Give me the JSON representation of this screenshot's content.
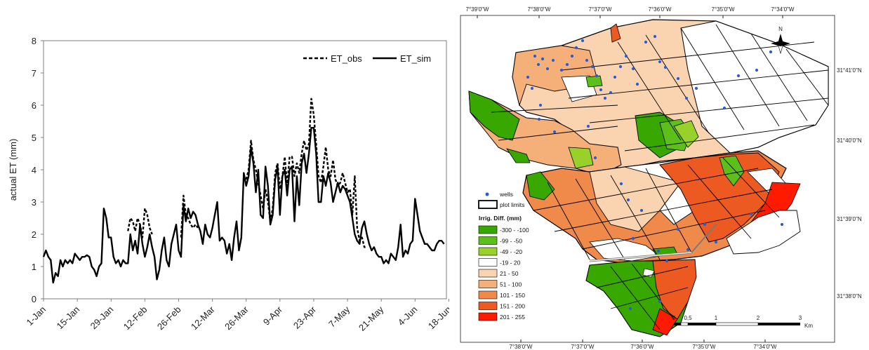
{
  "chart_data": {
    "type": "line",
    "ylabel": "actual ET (mm)",
    "ylim": [
      0,
      8
    ],
    "yticks": [
      "0",
      "1",
      "2",
      "3",
      "4",
      "5",
      "6",
      "7",
      "8"
    ],
    "xticks": [
      "1-Jan",
      "15-Jan",
      "29-Jan",
      "12-Feb",
      "26-Feb",
      "12-Mar",
      "26-Mar",
      "9-Apr",
      "23-Apr",
      "7-May",
      "21-May",
      "4-Jun",
      "18-Jun"
    ],
    "legend_position": "top-right",
    "series": [
      {
        "name": "ET_obs",
        "style": "dashed",
        "color": "#000000",
        "segments": [
          [
            [
              35,
              2.1
            ],
            [
              36,
              2.5
            ],
            [
              37,
              2.4
            ],
            [
              38,
              2.1
            ],
            [
              39,
              2.5
            ],
            [
              40,
              2.3
            ],
            [
              41,
              1.9
            ],
            [
              42,
              2.8
            ],
            [
              43,
              2.6
            ],
            [
              44,
              2.2
            ],
            [
              45,
              2.0
            ]
          ],
          [
            [
              57,
              1.9
            ],
            [
              58,
              3.2
            ],
            [
              59,
              2.6
            ],
            [
              60,
              2.5
            ],
            [
              61,
              2.3
            ],
            [
              62,
              2.2
            ],
            [
              63,
              2.3
            ],
            [
              64,
              2.2
            ]
          ],
          [
            [
              84,
              3.7
            ],
            [
              85,
              4.0
            ],
            [
              86,
              4.9
            ],
            [
              87,
              4.3
            ],
            [
              88,
              4.0
            ],
            [
              89,
              3.6
            ],
            [
              90,
              3.2
            ],
            [
              91,
              2.8
            ],
            [
              92,
              3.4
            ],
            [
              93,
              3.0
            ],
            [
              94,
              2.4
            ],
            [
              95,
              2.8
            ],
            [
              96,
              3.9
            ],
            [
              97,
              4.2
            ],
            [
              98,
              3.4
            ],
            [
              99,
              3.8
            ],
            [
              100,
              4.4
            ],
            [
              101,
              3.5
            ],
            [
              102,
              4.4
            ],
            [
              103,
              4.4
            ],
            [
              104,
              3.8
            ],
            [
              105,
              4.2
            ],
            [
              106,
              3.9
            ],
            [
              107,
              4.5
            ],
            [
              108,
              4.9
            ],
            [
              109,
              4.6
            ],
            [
              110,
              4.8
            ],
            [
              111,
              6.2
            ],
            [
              112,
              5.7
            ],
            [
              113,
              4.8
            ],
            [
              114,
              3.8
            ],
            [
              115,
              3.6
            ],
            [
              116,
              4.1
            ],
            [
              117,
              4.7
            ],
            [
              118,
              4.0
            ],
            [
              119,
              3.8
            ],
            [
              120,
              4.3
            ],
            [
              121,
              3.7
            ],
            [
              122,
              3.5
            ],
            [
              123,
              3.6
            ],
            [
              124,
              3.9
            ],
            [
              125,
              3.6
            ],
            [
              126,
              3.3
            ],
            [
              127,
              3.4
            ],
            [
              128,
              2.6
            ],
            [
              129,
              3.8
            ],
            [
              130,
              2.2
            ],
            [
              131,
              1.8
            ],
            [
              132,
              1.9
            ],
            [
              133,
              1.6
            ],
            [
              134,
              1.6
            ]
          ]
        ]
      },
      {
        "name": "ET_sim",
        "style": "solid",
        "color": "#000000",
        "segments": [
          [
            [
              0,
              1.3
            ],
            [
              1,
              1.5
            ],
            [
              2,
              1.3
            ],
            [
              3,
              1.2
            ],
            [
              4,
              0.5
            ],
            [
              5,
              0.8
            ],
            [
              6,
              0.7
            ],
            [
              7,
              1.2
            ],
            [
              8,
              1.0
            ],
            [
              9,
              1.2
            ],
            [
              10,
              1.1
            ],
            [
              11,
              1.2
            ],
            [
              12,
              1.1
            ],
            [
              13,
              1.4
            ],
            [
              14,
              1.3
            ],
            [
              15,
              1.2
            ],
            [
              16,
              1.3
            ],
            [
              17,
              1.3
            ],
            [
              18,
              1.35
            ],
            [
              19,
              1.3
            ],
            [
              20,
              1.0
            ],
            [
              21,
              0.9
            ],
            [
              22,
              0.7
            ],
            [
              23,
              1.0
            ],
            [
              24,
              1.1
            ],
            [
              25,
              2.8
            ],
            [
              26,
              2.5
            ],
            [
              27,
              1.9
            ],
            [
              28,
              1.9
            ],
            [
              29,
              1.3
            ],
            [
              30,
              1.1
            ],
            [
              31,
              1.2
            ],
            [
              32,
              1.0
            ],
            [
              33,
              1.2
            ],
            [
              34,
              1.1
            ],
            [
              35,
              1.1
            ],
            [
              36,
              2.0
            ],
            [
              37,
              1.5
            ],
            [
              38,
              1.8
            ],
            [
              39,
              1.4
            ],
            [
              40,
              2.3
            ],
            [
              41,
              1.7
            ],
            [
              42,
              1.3
            ],
            [
              43,
              1.6
            ],
            [
              44,
              2.0
            ],
            [
              45,
              1.6
            ],
            [
              46,
              1.3
            ],
            [
              47,
              0.6
            ],
            [
              48,
              0.9
            ],
            [
              49,
              1.5
            ],
            [
              50,
              1.9
            ],
            [
              51,
              1.2
            ],
            [
              52,
              1.0
            ],
            [
              53,
              1.7
            ],
            [
              54,
              2.0
            ],
            [
              55,
              2.3
            ],
            [
              56,
              1.5
            ],
            [
              57,
              1.3
            ],
            [
              58,
              2.9
            ],
            [
              59,
              2.4
            ],
            [
              60,
              2.8
            ],
            [
              61,
              2.5
            ],
            [
              62,
              2.7
            ],
            [
              63,
              2.6
            ],
            [
              64,
              2.3
            ],
            [
              65,
              2.1
            ],
            [
              66,
              1.7
            ],
            [
              67,
              2.3
            ],
            [
              68,
              2.0
            ],
            [
              69,
              1.9
            ],
            [
              70,
              2.2
            ],
            [
              71,
              2.6
            ],
            [
              72,
              3.0
            ],
            [
              73,
              1.8
            ],
            [
              74,
              1.9
            ],
            [
              75,
              1.8
            ],
            [
              76,
              1.4
            ],
            [
              77,
              1.7
            ],
            [
              78,
              1.2
            ],
            [
              79,
              1.9
            ],
            [
              80,
              2.4
            ],
            [
              81,
              1.5
            ],
            [
              82,
              1.9
            ],
            [
              83,
              3.9
            ],
            [
              84,
              3.5
            ],
            [
              85,
              3.8
            ],
            [
              86,
              4.7
            ],
            [
              87,
              4.2
            ],
            [
              88,
              3.3
            ],
            [
              89,
              4.0
            ],
            [
              90,
              2.6
            ],
            [
              91,
              2.5
            ],
            [
              92,
              4.1
            ],
            [
              93,
              3.5
            ],
            [
              94,
              2.3
            ],
            [
              95,
              2.6
            ],
            [
              96,
              3.7
            ],
            [
              97,
              4.1
            ],
            [
              98,
              2.6
            ],
            [
              99,
              3.8
            ],
            [
              100,
              4.0
            ],
            [
              101,
              3.2
            ],
            [
              102,
              4.0
            ],
            [
              103,
              4.1
            ],
            [
              104,
              2.4
            ],
            [
              105,
              3.8
            ],
            [
              106,
              2.9
            ],
            [
              107,
              4.2
            ],
            [
              108,
              4.5
            ],
            [
              109,
              3.9
            ],
            [
              110,
              4.5
            ],
            [
              111,
              5.3
            ],
            [
              112,
              5.3
            ],
            [
              113,
              4.5
            ],
            [
              114,
              3.0
            ],
            [
              115,
              3.0
            ],
            [
              116,
              3.8
            ],
            [
              117,
              3.5
            ],
            [
              118,
              3.9
            ],
            [
              119,
              3.6
            ],
            [
              120,
              3.0
            ],
            [
              121,
              3.3
            ],
            [
              122,
              3.6
            ],
            [
              123,
              3.3
            ],
            [
              124,
              3.5
            ],
            [
              125,
              3.4
            ],
            [
              126,
              3.2
            ],
            [
              127,
              3.0
            ],
            [
              128,
              2.5
            ],
            [
              129,
              2.0
            ],
            [
              130,
              1.8
            ],
            [
              131,
              1.7
            ],
            [
              132,
              2.2
            ],
            [
              133,
              2.4
            ],
            [
              134,
              2.0
            ],
            [
              135,
              1.7
            ],
            [
              136,
              1.5
            ],
            [
              137,
              1.6
            ],
            [
              138,
              1.4
            ],
            [
              139,
              1.3
            ],
            [
              140,
              1.3
            ],
            [
              141,
              1.1
            ],
            [
              142,
              1.2
            ],
            [
              143,
              1.1
            ],
            [
              144,
              1.4
            ],
            [
              145,
              1.3
            ],
            [
              146,
              1.2
            ],
            [
              147,
              1.6
            ],
            [
              148,
              2.3
            ],
            [
              149,
              1.3
            ],
            [
              150,
              1.5
            ],
            [
              151,
              1.4
            ],
            [
              152,
              1.7
            ],
            [
              153,
              1.8
            ],
            [
              154,
              3.1
            ],
            [
              155,
              2.6
            ],
            [
              156,
              2.1
            ],
            [
              157,
              1.9
            ],
            [
              158,
              1.7
            ],
            [
              159,
              1.7
            ],
            [
              160,
              1.6
            ],
            [
              161,
              1.5
            ],
            [
              162,
              1.5
            ],
            [
              163,
              1.7
            ],
            [
              164,
              1.8
            ],
            [
              165,
              1.8
            ],
            [
              166,
              1.7
            ]
          ]
        ]
      }
    ]
  },
  "map": {
    "top_ticks": [
      "7°39'0\"W",
      "7°38'0\"W",
      "7°37'0\"W",
      "7°36'0\"W",
      "7°35'0\"W",
      "7°34'0\"W"
    ],
    "bottom_ticks": [
      "7°38'0\"W",
      "7°37'0\"W",
      "7°36'0\"W",
      "7°35'0\"W",
      "7°34'0\"W"
    ],
    "right_ticks": [
      "31°41'0\"N",
      "31°40'0\"N",
      "31°39'0\"N",
      "31°38'0\"N"
    ],
    "north_label": "N",
    "scale_labels": [
      "0",
      "0,5",
      "1",
      "2",
      "3"
    ],
    "scale_unit": "Km",
    "legend": {
      "wells_label": "wells",
      "plot_limits_label": "plot limits",
      "title": "Irrig. Diff. (mm)",
      "classes": [
        {
          "label": "-300 - -100",
          "color": "#38a800"
        },
        {
          "label": "-99 - -50",
          "color": "#5cbf1a"
        },
        {
          "label": "-49 - -20",
          "color": "#98d12a"
        },
        {
          "label": "-19 - 20",
          "color": "#ffffff"
        },
        {
          "label": "21 - 50",
          "color": "#fad4b0"
        },
        {
          "label": "51 - 100",
          "color": "#f5b07a"
        },
        {
          "label": "101 - 150",
          "color": "#f08a4b"
        },
        {
          "label": "151 - 200",
          "color": "#ec5a21"
        },
        {
          "label": "201 - 255",
          "color": "#ff1a00"
        }
      ]
    }
  }
}
